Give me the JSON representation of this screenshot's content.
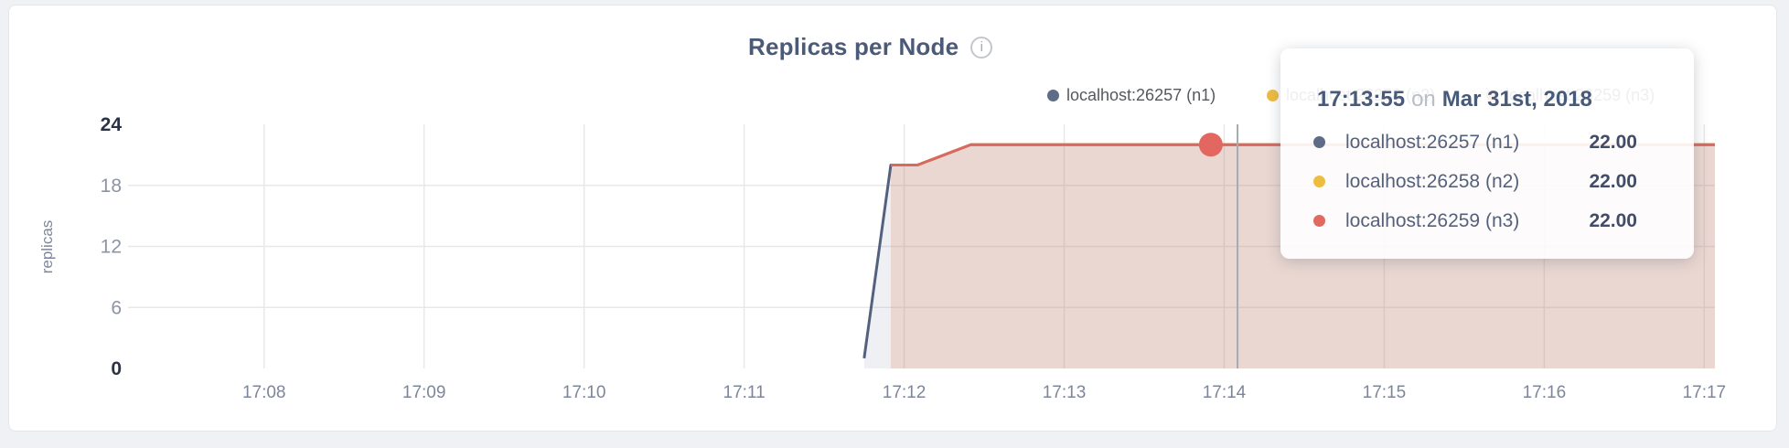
{
  "colors": {
    "page_bg": "#f0f1f4",
    "card_bg": "#ffffff",
    "card_border": "#e4e6ea",
    "title": "#4b5a77",
    "grid": "#e8e8eb",
    "tick_major": "#2b3245",
    "tick_minor": "#8c93a5",
    "x_tick": "#7d8699",
    "hover_line": "#a6abb3",
    "hover_dot": "#e26760"
  },
  "header": {
    "title": "Replicas per Node",
    "info_icon_glyph": "i"
  },
  "legend": {
    "items": [
      {
        "label": "localhost:26257 (n1)",
        "color": "#5f6c87"
      },
      {
        "label": "localhost:26258 (n2)",
        "color": "#eebc40"
      },
      {
        "label": "localhost:26259 (n3)",
        "color": "#e2695f"
      }
    ]
  },
  "tooltip": {
    "time": "17:13:55",
    "conjunction": "on",
    "date": "Mar 31st, 2018",
    "rows": [
      {
        "label": "localhost:26257 (n1)",
        "value": "22.00",
        "color": "#5f6c87"
      },
      {
        "label": "localhost:26258 (n2)",
        "value": "22.00",
        "color": "#eebc40"
      },
      {
        "label": "localhost:26259 (n3)",
        "value": "22.00",
        "color": "#e2695f"
      }
    ]
  },
  "chart_data": {
    "type": "area",
    "title": "Replicas per Node",
    "xlabel": "",
    "ylabel": "replicas",
    "ylim": [
      0,
      24
    ],
    "y_ticks": [
      0,
      6,
      12,
      18,
      24
    ],
    "y_gridline_values": [
      6,
      12,
      18
    ],
    "x_tick_labels": [
      "17:08",
      "17:09",
      "17:10",
      "17:11",
      "17:12",
      "17:13",
      "17:14",
      "17:15",
      "17:16",
      "17:17"
    ],
    "xlim": [
      "17:07:09",
      "17:17:04"
    ],
    "grid": true,
    "legend_position": "top-right",
    "series": [
      {
        "name": "localhost:26257 (n1)",
        "color": "#53607e",
        "fill": "rgba(95,108,135,0.10)",
        "points": [
          [
            "17:11:45",
            1
          ],
          [
            "17:11:55",
            20
          ],
          [
            "17:12:05",
            20
          ],
          [
            "17:12:25",
            22
          ],
          [
            "17:17:04",
            22
          ]
        ]
      },
      {
        "name": "localhost:26258 (n2)",
        "color": "#eebc40",
        "fill": "rgba(237,185,72,0.06)",
        "points": [
          [
            "17:11:55",
            20
          ],
          [
            "17:12:05",
            20
          ],
          [
            "17:12:25",
            22
          ],
          [
            "17:17:04",
            22
          ]
        ]
      },
      {
        "name": "localhost:26259 (n3)",
        "color": "#d9695f",
        "fill": "rgba(217,105,95,0.16)",
        "points": [
          [
            "17:11:55",
            20
          ],
          [
            "17:12:05",
            20
          ],
          [
            "17:12:25",
            22
          ],
          [
            "17:17:04",
            22
          ]
        ]
      }
    ],
    "hover": {
      "guideline_time": "17:14:05",
      "point": {
        "time": "17:13:55",
        "value": 22,
        "series": "localhost:26259 (n3)"
      }
    }
  }
}
